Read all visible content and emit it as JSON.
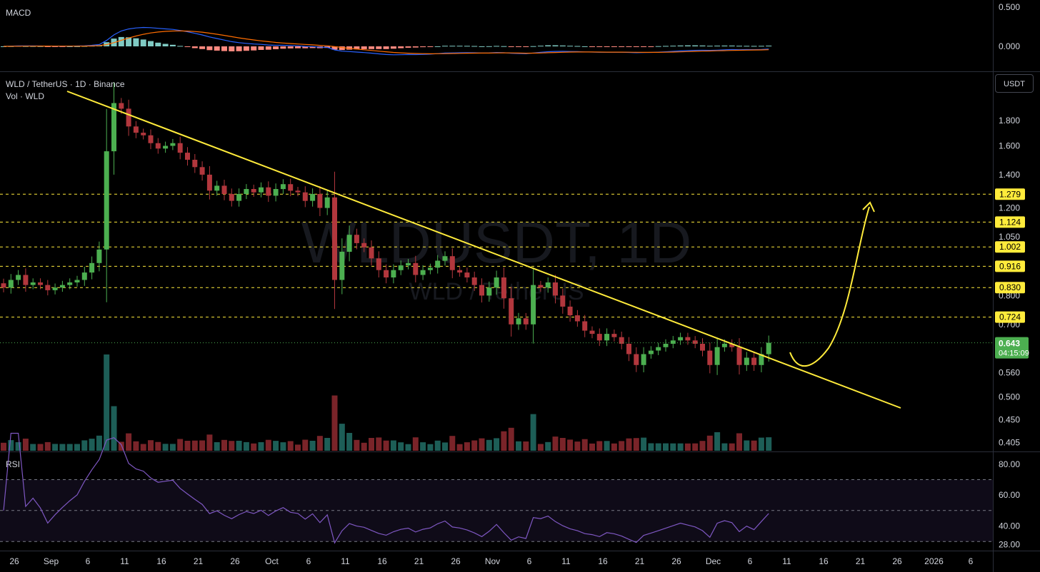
{
  "chart_data": {
    "type": "candlestick",
    "title": "WLD / TetherUS · 1D · Binance",
    "subtitle": "Vol · WLD",
    "watermark": "WLDUSDT, 1D",
    "watermark_sub": "WLD / TetherUS",
    "unit": "USDT",
    "y_scale": "log",
    "ylim": [
      0.39,
      2.2
    ],
    "y_ticks": [
      {
        "value": 1.8,
        "label": "1.800"
      },
      {
        "value": 1.6,
        "label": "1.600"
      },
      {
        "value": 1.4,
        "label": "1.400"
      },
      {
        "value": 1.2,
        "label": "1.200"
      },
      {
        "value": 1.05,
        "label": "1.050"
      },
      {
        "value": 0.8,
        "label": "0.800"
      },
      {
        "value": 0.7,
        "label": "0.700"
      },
      {
        "value": 0.56,
        "label": "0.560"
      },
      {
        "value": 0.5,
        "label": "0.500"
      },
      {
        "value": 0.45,
        "label": "0.450"
      },
      {
        "value": 0.405,
        "label": "0.405"
      }
    ],
    "levels": [
      {
        "value": 1.279,
        "label": "1.279"
      },
      {
        "value": 1.124,
        "label": "1.124"
      },
      {
        "value": 1.002,
        "label": "1.002"
      },
      {
        "value": 0.916,
        "label": "0.916"
      },
      {
        "value": 0.83,
        "label": "0.830"
      },
      {
        "value": 0.724,
        "label": "0.724"
      }
    ],
    "current_price": {
      "value": 0.643,
      "label": "0.643",
      "countdown": "04:15:09"
    },
    "x_ticks": [
      "26",
      "Sep",
      "6",
      "11",
      "16",
      "21",
      "26",
      "Oct",
      "6",
      "11",
      "16",
      "21",
      "26",
      "Nov",
      "6",
      "11",
      "16",
      "21",
      "26",
      "Dec",
      "6",
      "11",
      "16",
      "21",
      "26",
      "2026",
      "6"
    ],
    "start_date": "2025-08-22",
    "closes": [
      0.83,
      0.86,
      0.88,
      0.84,
      0.85,
      0.84,
      0.82,
      0.83,
      0.84,
      0.85,
      0.86,
      0.89,
      0.93,
      0.99,
      1.56,
      1.95,
      1.9,
      1.75,
      1.7,
      1.68,
      1.62,
      1.58,
      1.6,
      1.62,
      1.55,
      1.5,
      1.45,
      1.4,
      1.3,
      1.33,
      1.28,
      1.24,
      1.28,
      1.31,
      1.29,
      1.32,
      1.27,
      1.31,
      1.34,
      1.3,
      1.29,
      1.24,
      1.28,
      1.2,
      1.26,
      0.86,
      0.98,
      1.06,
      1.02,
      1.0,
      0.95,
      0.9,
      0.87,
      0.9,
      0.92,
      0.93,
      0.88,
      0.9,
      0.91,
      0.94,
      0.96,
      0.9,
      0.89,
      0.87,
      0.84,
      0.8,
      0.83,
      0.87,
      0.79,
      0.7,
      0.72,
      0.7,
      0.84,
      0.83,
      0.85,
      0.8,
      0.76,
      0.73,
      0.71,
      0.68,
      0.67,
      0.65,
      0.67,
      0.66,
      0.64,
      0.61,
      0.58,
      0.61,
      0.62,
      0.63,
      0.64,
      0.65,
      0.66,
      0.65,
      0.64,
      0.62,
      0.58,
      0.63,
      0.64,
      0.63,
      0.58,
      0.6,
      0.58,
      0.61,
      0.643
    ],
    "macd_ticks": [
      {
        "value": 0.5,
        "label": "0.500"
      },
      {
        "value": 0.0,
        "label": "0.000"
      }
    ],
    "rsi_ticks": [
      {
        "value": 80,
        "label": "80.00"
      },
      {
        "value": 60,
        "label": "60.00"
      },
      {
        "value": 40,
        "label": "40.00"
      },
      {
        "value": 28,
        "label": "28.00"
      }
    ],
    "rsi_bands": [
      70,
      50,
      30
    ],
    "panels": {
      "macd_label": "MACD",
      "rsi_label": "RSI"
    },
    "annotations": [
      "descending trendline",
      "projected breakout arrow to 1.279"
    ]
  },
  "colors": {
    "up": "#26a69a",
    "down": "#ef5350",
    "candle_up": "#4caf50",
    "candle_down": "#b2373d",
    "trend": "#ffeb3b",
    "macd": "#2962ff",
    "signal": "#ff6d00",
    "rsi": "#7e57c2"
  }
}
